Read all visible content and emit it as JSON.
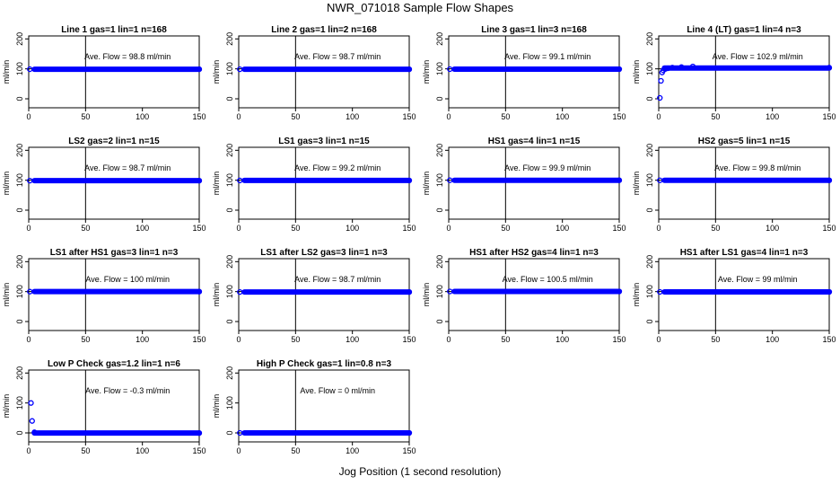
{
  "title": "NWR_071018  Sample Flow Shapes",
  "xlabel": "Jog Position (1 second resolution)",
  "colors": {
    "points": "#0000ff",
    "lines": "#000000"
  },
  "chart_data": [
    {
      "type": "scatter",
      "title": "Line 1 gas=1 lin=1 n=168",
      "ylabel": "ml/min",
      "annotation": "Ave. Flow =  98.8  ml/min",
      "level": 98.8,
      "xlim": [
        0,
        150
      ],
      "ylim": [
        -30,
        210
      ],
      "xticks": [
        0,
        50,
        100,
        150
      ],
      "yticks": [
        0,
        100,
        200
      ],
      "vline": 50,
      "hline": 100,
      "x": [
        1,
        150
      ],
      "y": [
        98.8,
        98.8
      ]
    },
    {
      "type": "scatter",
      "title": "Line 2 gas=1 lin=2 n=168",
      "ylabel": "ml/min",
      "annotation": "Ave. Flow =  98.7  ml/min",
      "level": 98.7,
      "xlim": [
        0,
        150
      ],
      "ylim": [
        -30,
        210
      ],
      "xticks": [
        0,
        50,
        100,
        150
      ],
      "yticks": [
        0,
        100,
        200
      ],
      "vline": 50,
      "hline": 100,
      "x": [
        1,
        150
      ],
      "y": [
        98.7,
        98.7
      ]
    },
    {
      "type": "scatter",
      "title": "Line 3 gas=1 lin=3 n=168",
      "ylabel": "ml/min",
      "annotation": "Ave. Flow =  99.1  ml/min",
      "level": 99.1,
      "xlim": [
        0,
        150
      ],
      "ylim": [
        -30,
        210
      ],
      "xticks": [
        0,
        50,
        100,
        150
      ],
      "yticks": [
        0,
        100,
        200
      ],
      "vline": 50,
      "hline": 100,
      "x": [
        1,
        150
      ],
      "y": [
        99.1,
        99.1
      ]
    },
    {
      "type": "scatter",
      "title": "Line 4 (LT) gas=1 lin=4 n=3",
      "ylabel": "ml/min",
      "annotation": "Ave. Flow =  102.9  ml/min",
      "level": 102.9,
      "xlim": [
        0,
        150
      ],
      "ylim": [
        -30,
        210
      ],
      "xticks": [
        0,
        50,
        100,
        150
      ],
      "yticks": [
        0,
        100,
        200
      ],
      "vline": 50,
      "hline": 100,
      "x": [
        1,
        2,
        3,
        4,
        6,
        8,
        12,
        20,
        30,
        150
      ],
      "y": [
        3,
        60,
        88,
        95,
        100,
        102,
        104,
        106,
        108,
        104
      ]
    },
    {
      "type": "scatter",
      "title": "LS2 gas=2 lin=1 n=15",
      "ylabel": "ml/min",
      "annotation": "Ave. Flow =  98.7  ml/min",
      "level": 98.7,
      "xlim": [
        0,
        150
      ],
      "ylim": [
        -30,
        210
      ],
      "xticks": [
        0,
        50,
        100,
        150
      ],
      "yticks": [
        0,
        100,
        200
      ],
      "vline": 50,
      "hline": 100,
      "x": [
        1,
        150
      ],
      "y": [
        98.7,
        98.7
      ]
    },
    {
      "type": "scatter",
      "title": "LS1 gas=3 lin=1 n=15",
      "ylabel": "ml/min",
      "annotation": "Ave. Flow =  99.2  ml/min",
      "level": 99.2,
      "xlim": [
        0,
        150
      ],
      "ylim": [
        -30,
        210
      ],
      "xticks": [
        0,
        50,
        100,
        150
      ],
      "yticks": [
        0,
        100,
        200
      ],
      "vline": 50,
      "hline": 100,
      "x": [
        1,
        150
      ],
      "y": [
        99.2,
        99.2
      ]
    },
    {
      "type": "scatter",
      "title": "HS1 gas=4 lin=1 n=15",
      "ylabel": "ml/min",
      "annotation": "Ave. Flow =  99.9  ml/min",
      "level": 99.9,
      "xlim": [
        0,
        150
      ],
      "ylim": [
        -30,
        210
      ],
      "xticks": [
        0,
        50,
        100,
        150
      ],
      "yticks": [
        0,
        100,
        200
      ],
      "vline": 50,
      "hline": 100,
      "x": [
        1,
        150
      ],
      "y": [
        99.9,
        99.9
      ]
    },
    {
      "type": "scatter",
      "title": "HS2 gas=5 lin=1 n=15",
      "ylabel": "ml/min",
      "annotation": "Ave. Flow =  99.8  ml/min",
      "level": 99.8,
      "xlim": [
        0,
        150
      ],
      "ylim": [
        -30,
        210
      ],
      "xticks": [
        0,
        50,
        100,
        150
      ],
      "yticks": [
        0,
        100,
        200
      ],
      "vline": 50,
      "hline": 100,
      "x": [
        1,
        150
      ],
      "y": [
        99.8,
        99.8
      ]
    },
    {
      "type": "scatter",
      "title": "LS1 after HS1 gas=3 lin=1 n=3",
      "ylabel": "ml/min",
      "annotation": "Ave. Flow =  100  ml/min",
      "level": 100,
      "xlim": [
        0,
        150
      ],
      "ylim": [
        -30,
        210
      ],
      "xticks": [
        0,
        50,
        100,
        150
      ],
      "yticks": [
        0,
        100,
        200
      ],
      "vline": 50,
      "hline": 100,
      "x": [
        1,
        150
      ],
      "y": [
        100,
        100
      ]
    },
    {
      "type": "scatter",
      "title": "LS1 after LS2 gas=3 lin=1 n=3",
      "ylabel": "ml/min",
      "annotation": "Ave. Flow =  98.7  ml/min",
      "level": 98.7,
      "xlim": [
        0,
        150
      ],
      "ylim": [
        -30,
        210
      ],
      "xticks": [
        0,
        50,
        100,
        150
      ],
      "yticks": [
        0,
        100,
        200
      ],
      "vline": 50,
      "hline": 100,
      "x": [
        1,
        150
      ],
      "y": [
        98.7,
        98.7
      ]
    },
    {
      "type": "scatter",
      "title": "HS1 after HS2 gas=4 lin=1 n=3",
      "ylabel": "ml/min",
      "annotation": "Ave. Flow =  100.5  ml/min",
      "level": 100.5,
      "xlim": [
        0,
        150
      ],
      "ylim": [
        -30,
        210
      ],
      "xticks": [
        0,
        50,
        100,
        150
      ],
      "yticks": [
        0,
        100,
        200
      ],
      "vline": 50,
      "hline": 100,
      "x": [
        1,
        150
      ],
      "y": [
        100.5,
        100.5
      ]
    },
    {
      "type": "scatter",
      "title": "HS1 after LS1 gas=4 lin=1 n=3",
      "ylabel": "ml/min",
      "annotation": "Ave. Flow =  99  ml/min",
      "level": 99,
      "xlim": [
        0,
        150
      ],
      "ylim": [
        -30,
        210
      ],
      "xticks": [
        0,
        50,
        100,
        150
      ],
      "yticks": [
        0,
        100,
        200
      ],
      "vline": 50,
      "hline": 100,
      "x": [
        1,
        150
      ],
      "y": [
        99,
        99
      ]
    },
    {
      "type": "scatter",
      "title": "Low P Check gas=1.2 lin=1 n=6",
      "ylabel": "ml/min",
      "annotation": "Ave. Flow =  -0.3  ml/min",
      "level": -0.3,
      "xlim": [
        0,
        150
      ],
      "ylim": [
        -30,
        210
      ],
      "xticks": [
        0,
        50,
        100,
        150
      ],
      "yticks": [
        0,
        100,
        200
      ],
      "vline": 50,
      "hline": 0,
      "x": [
        2,
        3,
        5,
        150
      ],
      "y": [
        100,
        40,
        2,
        -0.3
      ]
    },
    {
      "type": "scatter",
      "title": "High P Check gas=1 lin=0.8 n=3",
      "ylabel": "ml/min",
      "annotation": "Ave. Flow =  0  ml/min",
      "level": 0,
      "xlim": [
        0,
        150
      ],
      "ylim": [
        -30,
        210
      ],
      "xticks": [
        0,
        50,
        100,
        150
      ],
      "yticks": [
        0,
        100,
        200
      ],
      "vline": 50,
      "hline": 0,
      "x": [
        1,
        150
      ],
      "y": [
        0,
        0
      ]
    }
  ]
}
